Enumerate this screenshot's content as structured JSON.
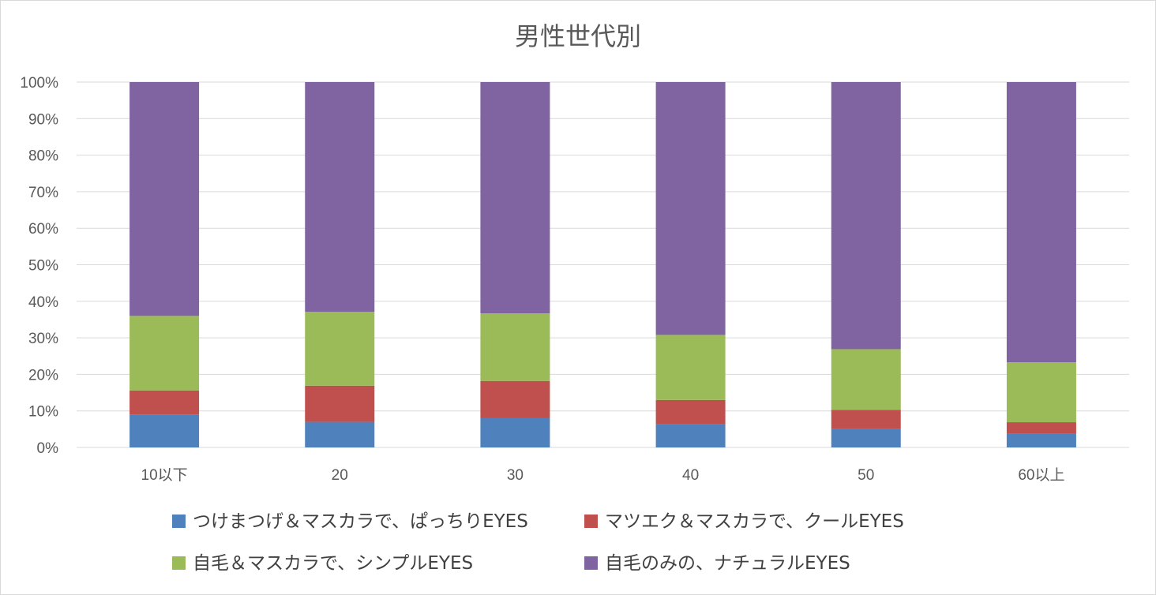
{
  "chart_data": {
    "type": "bar",
    "stacked": true,
    "percent_stacked": true,
    "title": "男性世代別",
    "categories": [
      "10以下",
      "20",
      "30",
      "40",
      "50",
      "60以上"
    ],
    "series": [
      {
        "name": "つけまつげ＆マスカラで、ぱっちりEYES",
        "color": "#4f81bd",
        "values": [
          9.0,
          7.0,
          8.0,
          6.3,
          5.0,
          3.8
        ]
      },
      {
        "name": "マツエク＆マスカラで、クールEYES",
        "color": "#c0504d",
        "values": [
          6.6,
          9.9,
          10.2,
          6.7,
          5.3,
          3.1
        ]
      },
      {
        "name": "自毛＆マスカラで、シンプルEYES",
        "color": "#9bbb59",
        "values": [
          20.4,
          20.2,
          18.5,
          17.8,
          16.6,
          16.4
        ]
      },
      {
        "name": "自毛のみの、ナチュラルEYES",
        "color": "#8064a2",
        "values": [
          64.0,
          62.9,
          63.3,
          69.2,
          73.1,
          76.7
        ]
      }
    ],
    "ylim": [
      0,
      100
    ],
    "yticks": [
      "0%",
      "10%",
      "20%",
      "30%",
      "40%",
      "50%",
      "60%",
      "70%",
      "80%",
      "90%",
      "100%"
    ],
    "grid": true,
    "legend_position": "bottom",
    "colors": {
      "grid": "#d9d9d9",
      "axis_text": "#595959",
      "legend_text": "#404040",
      "frame": "#d9d9d9"
    }
  }
}
